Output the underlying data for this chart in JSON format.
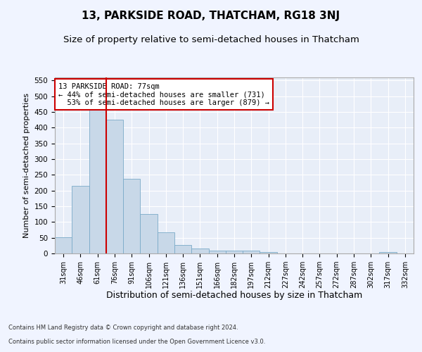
{
  "title_line1": "13, PARKSIDE ROAD, THATCHAM, RG18 3NJ",
  "title_line2": "Size of property relative to semi-detached houses in Thatcham",
  "xlabel": "Distribution of semi-detached houses by size in Thatcham",
  "ylabel": "Number of semi-detached properties",
  "footnote1": "Contains HM Land Registry data © Crown copyright and database right 2024.",
  "footnote2": "Contains public sector information licensed under the Open Government Licence v3.0.",
  "categories": [
    "31sqm",
    "46sqm",
    "61sqm",
    "76sqm",
    "91sqm",
    "106sqm",
    "121sqm",
    "136sqm",
    "151sqm",
    "166sqm",
    "182sqm",
    "197sqm",
    "212sqm",
    "227sqm",
    "242sqm",
    "257sqm",
    "272sqm",
    "287sqm",
    "302sqm",
    "317sqm",
    "332sqm"
  ],
  "values": [
    52,
    215,
    460,
    425,
    238,
    126,
    68,
    28,
    15,
    10,
    10,
    10,
    4,
    0,
    0,
    0,
    0,
    0,
    0,
    5,
    0
  ],
  "bar_color": "#c8d8e8",
  "bar_edge_color": "#7aaac8",
  "highlight_line_color": "#cc0000",
  "highlight_bar_index": 3,
  "annotation_line1": "13 PARKSIDE ROAD: 77sqm",
  "annotation_line2": "← 44% of semi-detached houses are smaller (731)",
  "annotation_line3": "  53% of semi-detached houses are larger (879) →",
  "annotation_box_color": "#ffffff",
  "annotation_box_edge_color": "#cc0000",
  "ylim": [
    0,
    560
  ],
  "yticks": [
    0,
    50,
    100,
    150,
    200,
    250,
    300,
    350,
    400,
    450,
    500,
    550
  ],
  "background_color": "#f0f4ff",
  "plot_bg_color": "#e8eef8",
  "grid_color": "#ffffff",
  "title1_fontsize": 11,
  "title2_fontsize": 9.5,
  "xlabel_fontsize": 9,
  "ylabel_fontsize": 8,
  "annotation_fontsize": 7.5
}
